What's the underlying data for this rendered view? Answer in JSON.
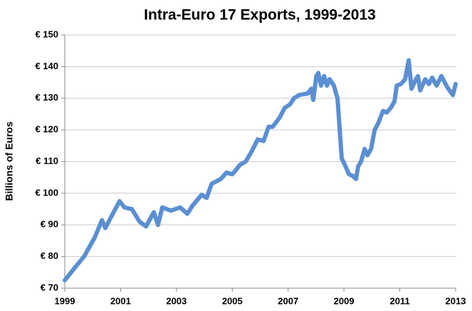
{
  "chart_data": {
    "type": "line",
    "title": "Intra-Euro 17 Exports, 1999-2013",
    "ylabel": "Billions of Euros",
    "x": [
      1999.0,
      1999.41,
      1999.69,
      2000.07,
      2000.33,
      2000.45,
      2000.63,
      2000.96,
      2001.14,
      2001.4,
      2001.68,
      2001.91,
      2002.19,
      2002.34,
      2002.49,
      2002.8,
      2003.13,
      2003.39,
      2003.57,
      2003.9,
      2004.08,
      2004.26,
      2004.59,
      2004.79,
      2005.0,
      2005.1,
      2005.28,
      2005.48,
      2005.68,
      2005.91,
      2006.12,
      2006.3,
      2006.45,
      2006.7,
      2006.88,
      2007.06,
      2007.21,
      2007.39,
      2007.7,
      2007.83,
      2007.9,
      2008.01,
      2008.08,
      2008.18,
      2008.29,
      2008.39,
      2008.49,
      2008.64,
      2008.77,
      2008.92,
      2009.03,
      2009.18,
      2009.31,
      2009.43,
      2009.51,
      2009.61,
      2009.74,
      2009.84,
      2009.97,
      2010.1,
      2010.22,
      2010.4,
      2010.53,
      2010.68,
      2010.81,
      2010.89,
      2011.04,
      2011.19,
      2011.32,
      2011.42,
      2011.58,
      2011.65,
      2011.73,
      2011.91,
      2012.04,
      2012.16,
      2012.32,
      2012.49,
      2012.7,
      2012.9,
      2013.0
    ],
    "series": [
      {
        "name": "Intra-Euro 17 Exports",
        "color": "#5b8fd1",
        "values": [
          72.5,
          77,
          80,
          86,
          91.5,
          89,
          92,
          97.5,
          95.5,
          95,
          91,
          89.5,
          94,
          90,
          95.5,
          94.5,
          95.5,
          93.5,
          96,
          99.5,
          98.5,
          103,
          104.5,
          106.5,
          106,
          107,
          109,
          110,
          113,
          117,
          116.5,
          121,
          121,
          124,
          127,
          128,
          130,
          131,
          131.5,
          133,
          129.5,
          137,
          138,
          134,
          137,
          134,
          136,
          134,
          130,
          111,
          109,
          106,
          105.5,
          104.5,
          108.5,
          110,
          114,
          112,
          114,
          120,
          122,
          126,
          125.5,
          127,
          129,
          134,
          134.5,
          136,
          142,
          133,
          136,
          137,
          132.5,
          136,
          134.5,
          136.5,
          134,
          137,
          133.5,
          131,
          134.5
        ]
      }
    ],
    "xlim": [
      1999,
      2013
    ],
    "xticks": [
      1999,
      2001,
      2003,
      2005,
      2007,
      2009,
      2011,
      2013
    ],
    "ylim": [
      70,
      150
    ],
    "yticks": [
      {
        "value": 70,
        "label": "€ 70"
      },
      {
        "value": 80,
        "label": "€ 80"
      },
      {
        "value": 90,
        "label": "€ 90"
      },
      {
        "value": 100,
        "label": "€ 100"
      },
      {
        "value": 110,
        "label": "€ 110"
      },
      {
        "value": 120,
        "label": "€ 120"
      },
      {
        "value": 130,
        "label": "€ 130"
      },
      {
        "value": 140,
        "label": "€ 140"
      },
      {
        "value": 150,
        "label": "€ 150"
      }
    ],
    "grid": true
  }
}
